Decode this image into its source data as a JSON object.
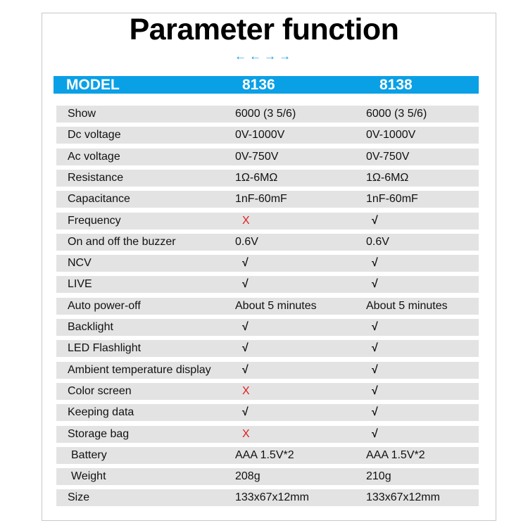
{
  "title": "Parameter function",
  "arrows": [
    "←",
    "←",
    "→",
    "→"
  ],
  "accent_color": "#0aa0e6",
  "header": {
    "label": "MODEL",
    "models": [
      "8136",
      "8138"
    ]
  },
  "rows": [
    {
      "label": "Show",
      "v1": "6000 (3 5/6)",
      "v2": "6000 (3 5/6)"
    },
    {
      "label": "Dc voltage",
      "v1": "0V-1000V",
      "v2": "0V-1000V"
    },
    {
      "label": "Ac voltage",
      "v1": "0V-750V",
      "v2": "0V-750V"
    },
    {
      "label": "Resistance",
      "v1": "1Ω-6MΩ",
      "v2": "1Ω-6MΩ"
    },
    {
      "label": "Capacitance",
      "v1": "1nF-60mF",
      "v2": "1nF-60mF"
    },
    {
      "label": "Frequency",
      "v1": "X",
      "v2": "√"
    },
    {
      "label": "On and off the buzzer",
      "v1": "0.6V",
      "v2": "0.6V"
    },
    {
      "label": "NCV",
      "v1": "√",
      "v2": "√"
    },
    {
      "label": "LIVE",
      "v1": "√",
      "v2": "√"
    },
    {
      "label": "Auto power-off",
      "v1": "About 5 minutes",
      "v2": "About 5 minutes"
    },
    {
      "label": "Backlight",
      "v1": "√",
      "v2": "√"
    },
    {
      "label": "LED Flashlight",
      "v1": "√",
      "v2": "√"
    },
    {
      "label": "Ambient temperature display",
      "v1": "√",
      "v2": "√"
    },
    {
      "label": "Color screen",
      "v1": "X",
      "v2": "√"
    },
    {
      "label": "Keeping data",
      "v1": "√",
      "v2": "√"
    },
    {
      "label": "Storage bag",
      "v1": "X",
      "v2": "√"
    },
    {
      "label": "Battery",
      "v1": "AAA 1.5V*2",
      "v2": "AAA 1.5V*2"
    },
    {
      "label": "Weight",
      "v1": "208g",
      "v2": "210g"
    },
    {
      "label": "Size",
      "v1": "133x67x12mm",
      "v2": "133x67x12mm"
    }
  ]
}
